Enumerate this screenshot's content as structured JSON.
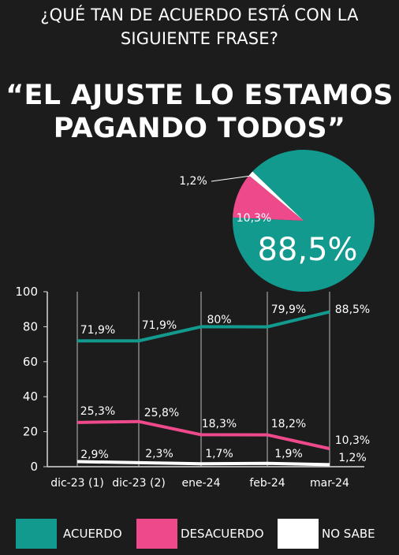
{
  "question": "¿QUÉ TAN DE ACUERDO ESTÁ CON LA SIGUIENTE FRASE?",
  "quote": "“EL AJUSTE LO ESTAMOS PAGANDO TODOS”",
  "colors": {
    "acuerdo": "#129a8f",
    "desacuerdo": "#ee4a8b",
    "no_sabe": "#ffffff",
    "background": "#1c1c1c"
  },
  "pie": {
    "slices": [
      {
        "name": "ACUERDO",
        "value": 88.5,
        "label": "88,5%",
        "color": "#129a8f"
      },
      {
        "name": "DESACUERDO",
        "value": 10.3,
        "label": "10,3%",
        "color": "#ee4a8b"
      },
      {
        "name": "NO SABE",
        "value": 1.2,
        "label": "1,2%",
        "color": "#ffffff"
      }
    ]
  },
  "chart_data": [
    {
      "type": "pie",
      "categories": [
        "ACUERDO",
        "DESACUERDO",
        "NO SABE"
      ],
      "values": [
        88.5,
        10.3,
        1.2
      ]
    },
    {
      "type": "line",
      "categories": [
        "dic-23 (1)",
        "dic-23 (2)",
        "ene-24",
        "feb-24",
        "mar-24"
      ],
      "ylim": [
        0,
        100
      ],
      "yticks": [
        0,
        20,
        40,
        60,
        80,
        100
      ],
      "grid": "vertical",
      "series": [
        {
          "name": "ACUERDO",
          "values": [
            71.9,
            71.9,
            80,
            79.9,
            88.5
          ],
          "labels": [
            "71,9%",
            "71,9%",
            "80%",
            "79,9%",
            "88,5%"
          ],
          "color": "#129a8f"
        },
        {
          "name": "DESACUERDO",
          "values": [
            25.3,
            25.8,
            18.3,
            18.2,
            10.3
          ],
          "labels": [
            "25,3%",
            "25,8%",
            "18,3%",
            "18,2%",
            "10,3%"
          ],
          "color": "#ee4a8b"
        },
        {
          "name": "NO SABE",
          "values": [
            2.9,
            2.3,
            1.7,
            1.9,
            1.2
          ],
          "labels": [
            "2,9%",
            "2,3%",
            "1,7%",
            "1,9%",
            "1,2%"
          ],
          "color": "#ffffff"
        }
      ]
    }
  ],
  "legend": [
    {
      "label": "ACUERDO",
      "color": "#129a8f"
    },
    {
      "label": "DESACUERDO",
      "color": "#ee4a8b"
    },
    {
      "label": "NO SABE",
      "color": "#ffffff"
    }
  ]
}
